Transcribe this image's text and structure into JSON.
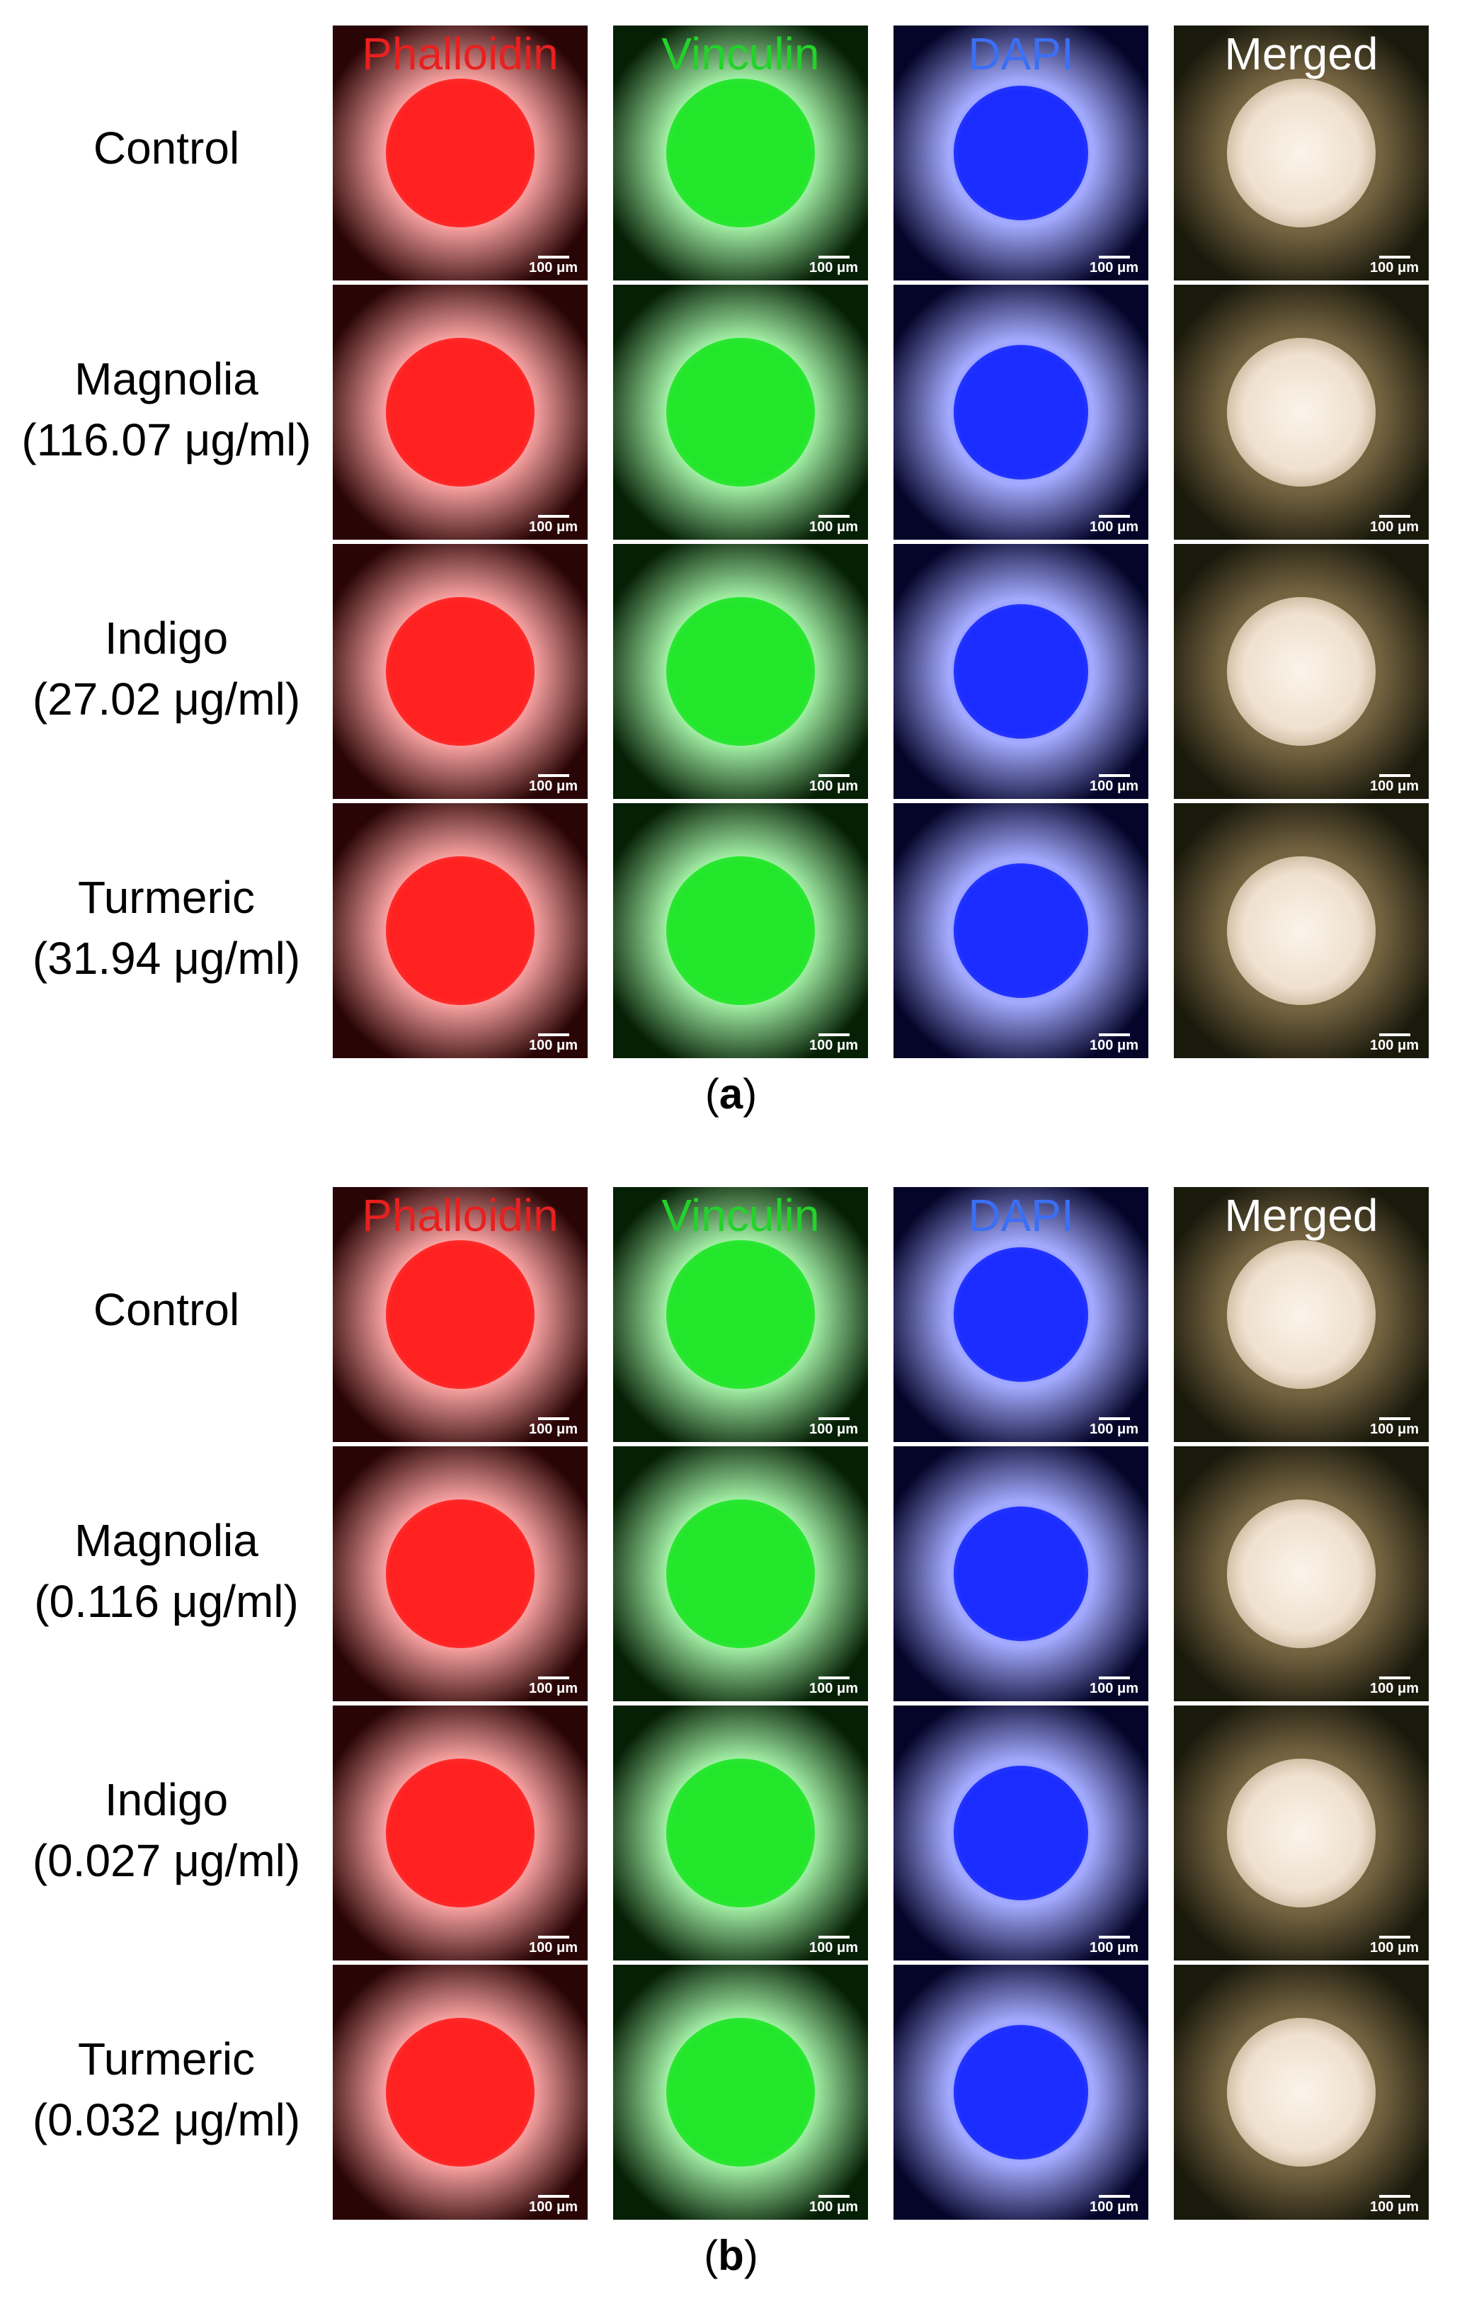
{
  "panels": [
    {
      "letter": "a",
      "columns": [
        {
          "label": "Phalloidin",
          "color": "#e8201f"
        },
        {
          "label": "Vinculin",
          "color": "#22d32a"
        },
        {
          "label": "DAPI",
          "color": "#3b6ff5"
        },
        {
          "label": "Merged",
          "color": "#ffffff"
        }
      ],
      "rows": [
        {
          "name": "Control",
          "dose": ""
        },
        {
          "name": "Magnolia",
          "dose": "(116.07 μg/ml)"
        },
        {
          "name": "Indigo",
          "dose": "(27.02 μg/ml)"
        },
        {
          "name": "Turmeric",
          "dose": "(31.94 μg/ml)"
        }
      ]
    },
    {
      "letter": "b",
      "columns": [
        {
          "label": "Phalloidin",
          "color": "#e8201f"
        },
        {
          "label": "Vinculin",
          "color": "#22d32a"
        },
        {
          "label": "DAPI",
          "color": "#3b6ff5"
        },
        {
          "label": "Merged",
          "color": "#ffffff"
        }
      ],
      "rows": [
        {
          "name": "Control",
          "dose": ""
        },
        {
          "name": "Magnolia",
          "dose": "(0.116 μg/ml)"
        },
        {
          "name": "Indigo",
          "dose": "(0.027 μg/ml)"
        },
        {
          "name": "Turmeric",
          "dose": "(0.032 μg/ml)"
        }
      ]
    }
  ],
  "scale_bar_label": "100 μm",
  "channel_colors": {
    "phalloidin": "#ff2020",
    "vinculin": "#22e62a",
    "dapi": "#1a2cff",
    "merged": "#f3e6d2"
  }
}
